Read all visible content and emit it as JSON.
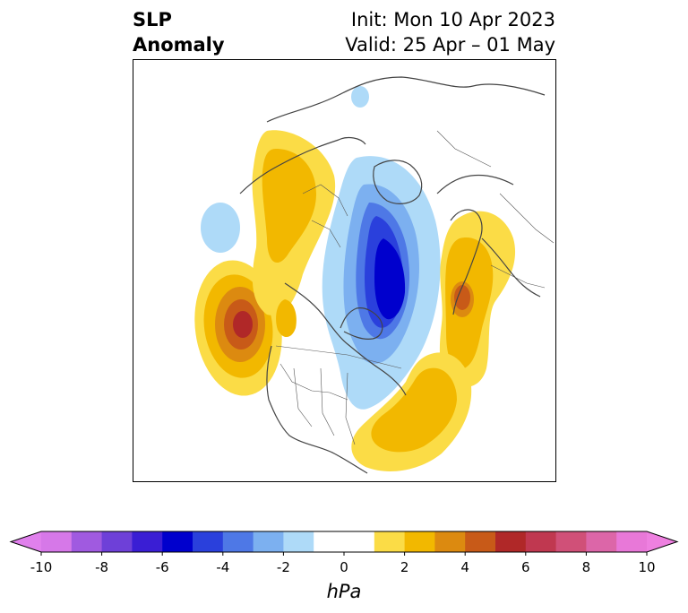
{
  "header": {
    "variable_line1": "SLP",
    "variable_line2": "Anomaly",
    "init_label": "Init: Mon 10 Apr 2023",
    "valid_label": "Valid: 25 Apr – 01 May"
  },
  "map": {
    "projection": "polar-stereographic",
    "region": "North America / North Atlantic / Arctic",
    "features": [
      {
        "name": "ne-pacific-high",
        "sign": "positive",
        "peak_hPa": 6
      },
      {
        "name": "nw-canada-high",
        "sign": "positive",
        "peak_hPa": 2
      },
      {
        "name": "alaska-low",
        "sign": "negative",
        "peak_hPa": -1
      },
      {
        "name": "greenland-arctic-low",
        "sign": "negative",
        "peak_hPa": -6
      },
      {
        "name": "scandinavia-high",
        "sign": "positive",
        "peak_hPa": 4
      },
      {
        "name": "western-atlantic-high",
        "sign": "positive",
        "peak_hPa": 2
      },
      {
        "name": "russia-low",
        "sign": "negative",
        "peak_hPa": -1
      }
    ]
  },
  "colorbar": {
    "unit_label": "hPa",
    "ticks": [
      "-10",
      "-8",
      "-6",
      "-4",
      "-2",
      "0",
      "2",
      "4",
      "6",
      "8",
      "10"
    ],
    "bounds": [
      -10,
      10
    ],
    "step": 1,
    "extend": "both",
    "colors": [
      "#d678e8",
      "#a05ae0",
      "#6e40d8",
      "#3a1ed4",
      "#0000cd",
      "#2a40dc",
      "#4e78e6",
      "#7cb0f0",
      "#aedaf8",
      "#ffffff",
      "#ffffff",
      "#fbdc46",
      "#f2b800",
      "#dc8a10",
      "#c85a18",
      "#b02828",
      "#c03850",
      "#d05078",
      "#dc66a8",
      "#e878d8"
    ],
    "under_color": "#e080ec",
    "over_color": "#ee80e0"
  }
}
